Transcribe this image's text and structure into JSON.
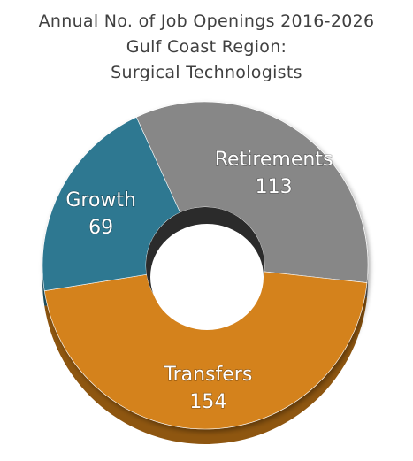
{
  "chart_data": {
    "type": "pie",
    "title_lines": [
      "Annual No. of Job Openings 2016-2026",
      "Gulf Coast Region:",
      "Surgical Technologists"
    ],
    "categories": [
      "Retirements",
      "Transfers",
      "Growth"
    ],
    "values": [
      113,
      154,
      69
    ],
    "colors": [
      "#878787",
      "#D4821A",
      "#2F7891"
    ],
    "shade_colors": [
      "#5a5a5a",
      "#8e5610",
      "#1e4f60"
    ],
    "donut": true,
    "legend": "none",
    "data_labels": "inside"
  }
}
